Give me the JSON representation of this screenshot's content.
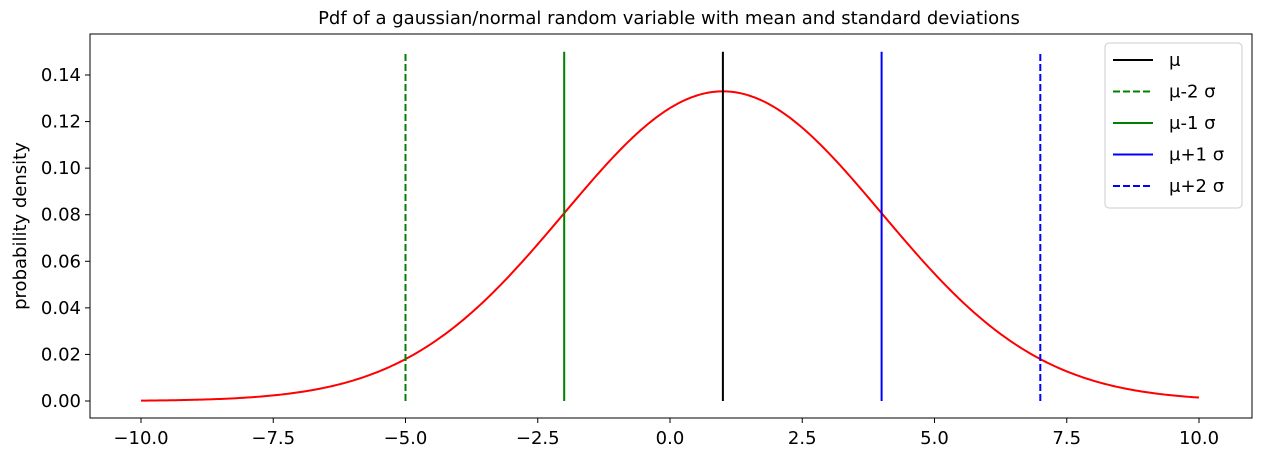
{
  "chart_data": {
    "type": "line",
    "title": "Pdf of a gaussian/normal random variable with mean and standard deviations",
    "xlabel": "",
    "ylabel": "probability density",
    "xlim": [
      -10.0,
      10.0
    ],
    "ylim": [
      0.0,
      0.15
    ],
    "x_ticks": [
      "−10.0",
      "−7.5",
      "−5.0",
      "−2.5",
      "0.0",
      "2.5",
      "5.0",
      "7.5",
      "10.0"
    ],
    "x_tick_values": [
      -10.0,
      -7.5,
      -5.0,
      -2.5,
      0.0,
      2.5,
      5.0,
      7.5,
      10.0
    ],
    "y_ticks": [
      "0.00",
      "0.02",
      "0.04",
      "0.06",
      "0.08",
      "0.10",
      "0.12",
      "0.14"
    ],
    "y_tick_values": [
      0.0,
      0.02,
      0.04,
      0.06,
      0.08,
      0.1,
      0.12,
      0.14
    ],
    "grid": false,
    "legend_position": "top-right",
    "curve": {
      "color": "#ff0000",
      "x": [
        -10.0,
        -9.0,
        -8.0,
        -7.0,
        -6.0,
        -5.0,
        -4.0,
        -3.0,
        -2.0,
        -1.0,
        0.0,
        0.5,
        1.0,
        1.5,
        2.0,
        3.0,
        4.0,
        5.0,
        6.0,
        7.0,
        8.0,
        9.0,
        10.0
      ],
      "y": [
        0.0003,
        0.0009,
        0.0022,
        0.0046,
        0.0089,
        0.018,
        0.0332,
        0.0547,
        0.0807,
        0.1065,
        0.1258,
        0.1312,
        0.133,
        0.1312,
        0.1258,
        0.1065,
        0.0807,
        0.0547,
        0.0332,
        0.018,
        0.0089,
        0.0046,
        0.0022
      ]
    },
    "series": [
      {
        "name": "μ",
        "x": 1.0,
        "color": "#000000",
        "dash": "solid"
      },
      {
        "name": "μ-2 σ",
        "x": -5.0,
        "color": "#008000",
        "dash": "dashed"
      },
      {
        "name": "μ-1 σ",
        "x": -2.0,
        "color": "#008000",
        "dash": "solid"
      },
      {
        "name": "μ+1 σ",
        "x": 4.0,
        "color": "#0000ff",
        "dash": "solid"
      },
      {
        "name": "μ+2 σ",
        "x": 7.0,
        "color": "#0000ff",
        "dash": "dashed"
      }
    ]
  }
}
